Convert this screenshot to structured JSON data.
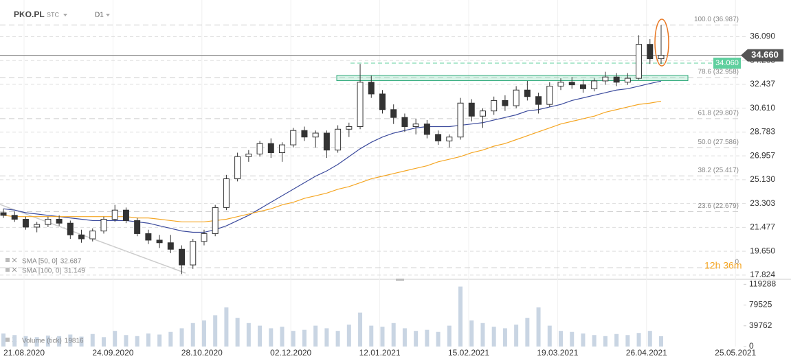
{
  "header": {
    "symbol": "PKO.PL",
    "market": "STC",
    "timeframe": "D1"
  },
  "chart_data": [
    {
      "type": "candlestick",
      "ylim": [
        17.5,
        38.9
      ],
      "yticks": [
        {
          "value": 17.824,
          "label": "17.824"
        },
        {
          "value": 19.65,
          "label": "19.650"
        },
        {
          "value": 21.477,
          "label": "21.477"
        },
        {
          "value": 23.303,
          "label": "23.303"
        },
        {
          "value": 25.13,
          "label": "25.130"
        },
        {
          "value": 26.957,
          "label": "26.957"
        },
        {
          "value": 28.783,
          "label": "28.783"
        },
        {
          "value": 30.61,
          "label": "30.610"
        },
        {
          "value": 32.437,
          "label": "32.437"
        },
        {
          "value": 34.263,
          "label": "34.263"
        },
        {
          "value": 36.09,
          "label": "36.090"
        }
      ],
      "grid": true,
      "ohlc": [
        [
          22.6,
          22.9,
          22.2,
          22.4
        ],
        [
          22.4,
          22.7,
          21.9,
          22.1
        ],
        [
          22.1,
          22.3,
          21.3,
          21.5
        ],
        [
          21.5,
          21.9,
          21.1,
          21.7
        ],
        [
          21.7,
          22.3,
          21.5,
          22.1
        ],
        [
          22.1,
          22.4,
          21.6,
          21.8
        ],
        [
          21.8,
          22.0,
          20.6,
          20.9
        ],
        [
          20.9,
          21.3,
          20.3,
          20.6
        ],
        [
          20.6,
          21.4,
          20.4,
          21.2
        ],
        [
          21.2,
          22.3,
          21.0,
          22.1
        ],
        [
          22.1,
          23.2,
          21.9,
          22.8
        ],
        [
          22.8,
          23.0,
          21.8,
          22.0
        ],
        [
          22.0,
          22.2,
          20.8,
          21.0
        ],
        [
          21.0,
          21.3,
          20.2,
          20.5
        ],
        [
          20.5,
          20.9,
          19.9,
          20.3
        ],
        [
          20.3,
          20.9,
          19.5,
          19.8
        ],
        [
          19.8,
          20.1,
          17.9,
          18.6
        ],
        [
          18.6,
          20.6,
          18.3,
          20.4
        ],
        [
          20.4,
          21.3,
          20.1,
          21.0
        ],
        [
          21.0,
          23.2,
          20.8,
          23.0
        ],
        [
          23.0,
          25.5,
          22.8,
          25.2
        ],
        [
          25.2,
          27.2,
          25.0,
          26.9
        ],
        [
          26.9,
          27.4,
          26.5,
          27.1
        ],
        [
          27.1,
          28.1,
          26.9,
          27.9
        ],
        [
          27.9,
          28.3,
          26.8,
          27.2
        ],
        [
          27.2,
          28.0,
          26.5,
          27.8
        ],
        [
          27.8,
          29.1,
          27.6,
          28.9
        ],
        [
          28.9,
          29.2,
          28.1,
          28.4
        ],
        [
          28.4,
          28.9,
          27.6,
          28.7
        ],
        [
          28.7,
          28.9,
          26.8,
          27.4
        ],
        [
          27.4,
          29.3,
          27.2,
          29.0
        ],
        [
          29.0,
          29.5,
          28.4,
          29.2
        ],
        [
          29.2,
          34.0,
          29.0,
          32.6
        ],
        [
          32.6,
          33.1,
          31.4,
          31.7
        ],
        [
          31.7,
          32.0,
          30.2,
          30.5
        ],
        [
          30.5,
          30.9,
          29.4,
          29.9
        ],
        [
          29.9,
          30.2,
          28.8,
          29.2
        ],
        [
          29.2,
          29.8,
          28.6,
          29.4
        ],
        [
          29.4,
          29.7,
          28.3,
          28.6
        ],
        [
          28.6,
          28.9,
          27.8,
          28.1
        ],
        [
          28.1,
          28.6,
          27.6,
          28.4
        ],
        [
          28.4,
          31.4,
          28.2,
          31.0
        ],
        [
          31.0,
          31.3,
          29.6,
          30.0
        ],
        [
          30.0,
          30.6,
          29.1,
          30.4
        ],
        [
          30.4,
          31.5,
          30.1,
          31.2
        ],
        [
          31.2,
          31.6,
          30.4,
          30.8
        ],
        [
          30.8,
          32.3,
          30.6,
          32.0
        ],
        [
          32.0,
          32.7,
          31.2,
          31.5
        ],
        [
          31.5,
          31.8,
          30.2,
          30.9
        ],
        [
          30.9,
          32.6,
          30.7,
          32.3
        ],
        [
          32.3,
          32.9,
          32.0,
          32.6
        ],
        [
          32.6,
          33.0,
          32.1,
          32.4
        ],
        [
          32.4,
          32.8,
          31.8,
          32.1
        ],
        [
          32.1,
          32.9,
          31.9,
          32.7
        ],
        [
          32.7,
          33.4,
          32.4,
          33.0
        ],
        [
          33.0,
          33.3,
          32.3,
          32.6
        ],
        [
          32.6,
          33.3,
          32.4,
          32.9
        ],
        [
          32.9,
          36.2,
          32.8,
          35.5
        ],
        [
          35.5,
          35.9,
          34.0,
          34.4
        ],
        [
          34.4,
          37.0,
          34.0,
          34.66
        ]
      ],
      "up_color": "#ffffff",
      "down_color": "#333333",
      "series": [
        {
          "name": "SMA [50, 0]",
          "color": "#3b4a9c",
          "values": [
            22.9,
            22.8,
            22.6,
            22.5,
            22.4,
            22.3,
            22.2,
            22.1,
            22.0,
            22.0,
            22.0,
            22.0,
            21.9,
            21.8,
            21.6,
            21.4,
            21.2,
            21.1,
            21.1,
            21.3,
            21.6,
            22.0,
            22.4,
            22.9,
            23.4,
            23.9,
            24.4,
            24.9,
            25.4,
            25.8,
            26.3,
            26.9,
            27.5,
            28.0,
            28.4,
            28.7,
            28.9,
            29.1,
            29.2,
            29.2,
            29.2,
            29.3,
            29.4,
            29.5,
            29.7,
            29.9,
            30.1,
            30.4,
            30.5,
            30.7,
            30.9,
            31.2,
            31.4,
            31.6,
            31.8,
            32.0,
            32.1,
            32.3,
            32.5,
            32.687
          ]
        },
        {
          "name": "SMA [100, 0]",
          "color": "#f5a623",
          "values": [
            22.4,
            22.3,
            22.3,
            22.3,
            22.3,
            22.3,
            22.3,
            22.3,
            22.3,
            22.3,
            22.3,
            22.3,
            22.2,
            22.2,
            22.1,
            22.0,
            21.9,
            21.9,
            21.9,
            22.0,
            22.1,
            22.3,
            22.5,
            22.7,
            22.9,
            23.2,
            23.4,
            23.7,
            23.9,
            24.1,
            24.4,
            24.6,
            24.9,
            25.2,
            25.4,
            25.6,
            25.8,
            26.0,
            26.2,
            26.5,
            26.7,
            26.9,
            27.2,
            27.4,
            27.7,
            27.9,
            28.2,
            28.5,
            28.8,
            29.1,
            29.4,
            29.6,
            29.8,
            30.0,
            30.3,
            30.5,
            30.7,
            30.9,
            31.0,
            31.149
          ]
        }
      ],
      "current_price": {
        "value": 34.66,
        "label": "34.660"
      },
      "level_line": {
        "value": 34.06,
        "label": "34.060"
      },
      "zone": [
        32.72,
        33.12
      ],
      "fibonacci": [
        {
          "label": "100.0 (36.987)",
          "value": 36.987
        },
        {
          "label": "78.6 (32.958)",
          "value": 32.958
        },
        {
          "label": "61.8 (29.807)",
          "value": 29.807
        },
        {
          "label": "50.0 (27.586)",
          "value": 27.586
        },
        {
          "label": "38.2 (25.417)",
          "value": 25.417
        },
        {
          "label": "23.6 (22.679)",
          "value": 22.679
        },
        {
          "label": "0",
          "value": 18.39
        }
      ],
      "countdown": "12h 36m"
    },
    {
      "type": "bar",
      "title": "Volume (tick)",
      "color": "#c9d5e3",
      "ylim": [
        0,
        127600
      ],
      "yticks": [
        0,
        39762,
        79525,
        119288
      ],
      "values": [
        25000,
        22000,
        20000,
        18000,
        21000,
        20000,
        23000,
        19000,
        24000,
        18000,
        30000,
        22000,
        20000,
        25000,
        23000,
        28000,
        35000,
        45000,
        50000,
        60000,
        75000,
        55000,
        45000,
        40000,
        35000,
        38000,
        30000,
        32000,
        40000,
        35000,
        30000,
        42000,
        65000,
        40000,
        38000,
        45000,
        35000,
        30000,
        32000,
        28000,
        40000,
        115000,
        50000,
        45000,
        38000,
        35000,
        42000,
        55000,
        75000,
        40000,
        30000,
        28000,
        25000,
        22000,
        20000,
        24000,
        22000,
        26000,
        30000,
        19816
      ],
      "date_labels": [
        "21.08.2020",
        "24.09.2020",
        "28.10.2020",
        "02.12.2020",
        "12.01.2021",
        "15.02.2021",
        "19.03.2021",
        "26.04.2021",
        "25.05.2021"
      ]
    }
  ]
}
